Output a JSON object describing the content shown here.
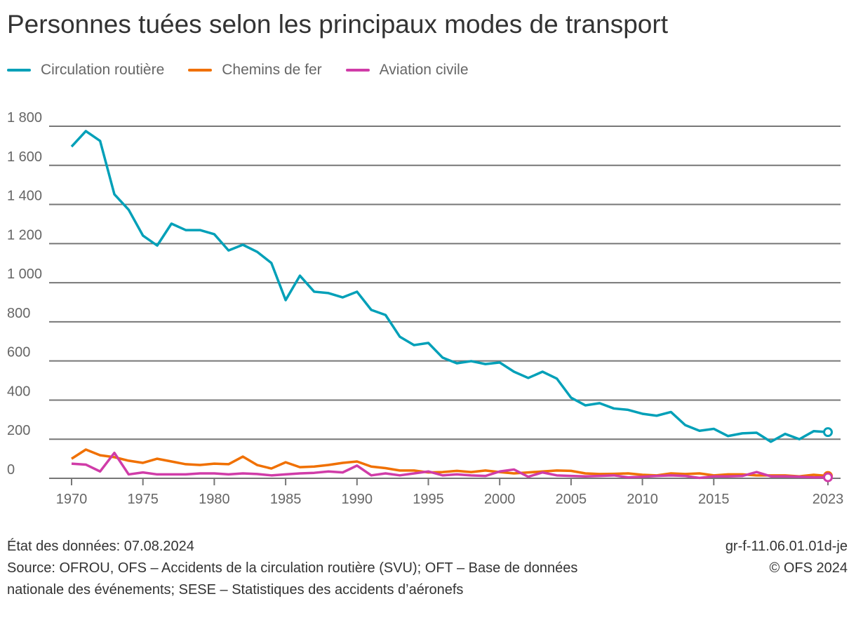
{
  "chart_data": {
    "type": "line",
    "title": "Personnes tuées selon les principaux modes de transport",
    "xlabel": "",
    "ylabel": "",
    "ylim": [
      0,
      1800
    ],
    "xlim": [
      1970,
      2023
    ],
    "grid": true,
    "legend_placement": "top-left",
    "y_ticks": [
      "0",
      "200",
      "400",
      "600",
      "800",
      "1 000",
      "1 200",
      "1 400",
      "1 600",
      "1 800"
    ],
    "x_ticks": [
      "1970",
      "1975",
      "1980",
      "1985",
      "1990",
      "1995",
      "2000",
      "2005",
      "2010",
      "2015",
      "2023"
    ],
    "x": [
      1970,
      1971,
      1972,
      1973,
      1974,
      1975,
      1976,
      1977,
      1978,
      1979,
      1980,
      1981,
      1982,
      1983,
      1984,
      1985,
      1986,
      1987,
      1988,
      1989,
      1990,
      1991,
      1992,
      1993,
      1994,
      1995,
      1996,
      1997,
      1998,
      1999,
      2000,
      2001,
      2002,
      2003,
      2004,
      2005,
      2006,
      2007,
      2008,
      2009,
      2010,
      2011,
      2012,
      2013,
      2014,
      2015,
      2016,
      2017,
      2018,
      2019,
      2020,
      2021,
      2022,
      2023
    ],
    "series": [
      {
        "name": "Circulation routière",
        "color": "#00a0b8",
        "values": [
          1696,
          1775,
          1725,
          1452,
          1373,
          1241,
          1190,
          1302,
          1269,
          1269,
          1248,
          1165,
          1194,
          1158,
          1101,
          911,
          1036,
          954,
          947,
          925,
          954,
          861,
          835,
          724,
          681,
          692,
          617,
          588,
          599,
          584,
          592,
          545,
          513,
          545,
          510,
          412,
          373,
          384,
          357,
          350,
          330,
          320,
          339,
          272,
          243,
          253,
          216,
          230,
          233,
          187,
          227,
          200,
          241,
          236
        ]
      },
      {
        "name": "Chemins de fer",
        "color": "#f07000",
        "values": [
          100,
          147,
          118,
          108,
          90,
          79,
          100,
          86,
          72,
          68,
          75,
          72,
          111,
          68,
          50,
          82,
          57,
          60,
          68,
          79,
          86,
          60,
          52,
          40,
          40,
          30,
          32,
          38,
          32,
          40,
          32,
          25,
          30,
          35,
          40,
          38,
          25,
          22,
          23,
          25,
          18,
          15,
          25,
          22,
          25,
          15,
          20,
          20,
          15,
          15,
          15,
          10,
          18,
          12
        ]
      },
      {
        "name": "Aviation civile",
        "color": "#d03ca8",
        "values": [
          75,
          70,
          35,
          130,
          20,
          30,
          20,
          20,
          20,
          25,
          25,
          20,
          25,
          22,
          15,
          20,
          25,
          28,
          35,
          30,
          65,
          15,
          25,
          15,
          25,
          35,
          15,
          20,
          15,
          12,
          35,
          45,
          8,
          30,
          15,
          12,
          10,
          12,
          15,
          5,
          8,
          12,
          15,
          12,
          2,
          10,
          10,
          12,
          32,
          10,
          10,
          8,
          5,
          5
        ]
      }
    ]
  },
  "footer": {
    "date": "État des données: 07.08.2024",
    "source": "Source: OFROU, OFS – Accidents de la circulation routière (SVU); OFT – Base de données nationale des événements; SESE – Statistiques des accidents d’aéronefs",
    "code": "gr-f-11.06.01.01d-je",
    "copyright": "© OFS 2024"
  }
}
